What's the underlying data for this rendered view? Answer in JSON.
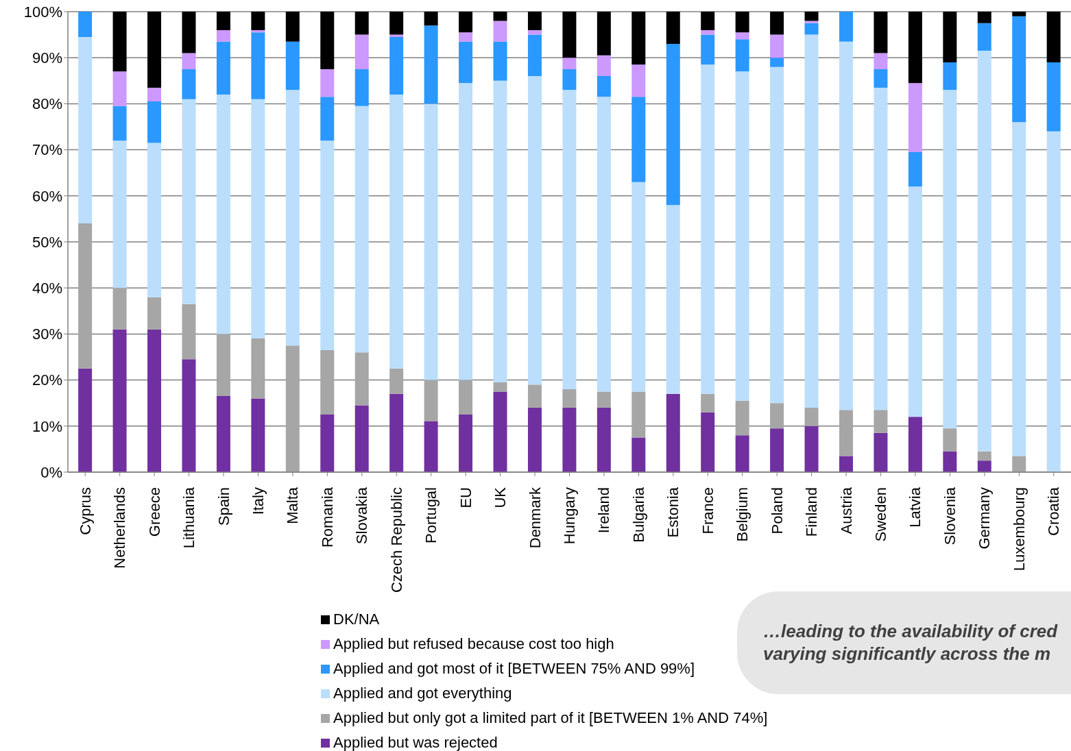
{
  "chart_data": {
    "type": "bar",
    "stacked": true,
    "categories": [
      "Cyprus",
      "Netherlands",
      "Greece",
      "Lithuania",
      "Spain",
      "Italy",
      "Malta",
      "Romania",
      "Slovakia",
      "Czech Republic",
      "Portugal",
      "EU",
      "UK",
      "Denmark",
      "Hungary",
      "Ireland",
      "Bulgaria",
      "Estonia",
      "France",
      "Belgium",
      "Poland",
      "Finland",
      "Austria",
      "Sweden",
      "Latvia",
      "Slovenia",
      "Germany",
      "Luxembourg",
      "Croatia"
    ],
    "series": [
      {
        "name": "Applied but was rejected",
        "color": "#7030a0",
        "values": [
          22.5,
          31,
          31,
          24.5,
          16.5,
          16,
          0,
          12.5,
          14.5,
          17,
          11,
          12.5,
          17.5,
          14,
          14,
          14,
          7.5,
          17,
          13,
          8,
          9.5,
          10,
          3.5,
          8.5,
          12,
          4.5,
          2.5,
          0,
          0
        ]
      },
      {
        "name": "Applied but only got a limited part of it [BETWEEN 1% AND 74%]",
        "color": "#a6a6a6",
        "values": [
          31.5,
          9,
          7,
          12,
          13.5,
          13,
          27.5,
          14,
          11.5,
          5.5,
          9,
          7.5,
          2,
          5,
          4,
          3.5,
          10,
          0,
          4,
          7.5,
          5.5,
          4,
          10,
          5,
          0,
          5,
          2,
          3.5,
          0
        ]
      },
      {
        "name": "Applied and got everything",
        "color": "#bbdefc",
        "values": [
          40.5,
          32,
          33.5,
          44.5,
          52,
          52,
          55.5,
          45.5,
          53.5,
          59.5,
          60,
          64.5,
          65.5,
          67,
          65,
          64,
          45.5,
          41,
          71.5,
          71.5,
          73,
          81,
          80,
          70,
          50,
          73.5,
          87,
          72.5,
          74
        ]
      },
      {
        "name": "Applied and got most of it [BETWEEN 75% AND 99%]",
        "color": "#2a98fe",
        "values": [
          5.5,
          7.5,
          9,
          6.5,
          11.5,
          14.5,
          10.5,
          9.5,
          8,
          12.5,
          17,
          9,
          8.5,
          9,
          4.5,
          4.5,
          18.5,
          35,
          6.5,
          7,
          2,
          2.5,
          6.5,
          4,
          7.5,
          6,
          6,
          23,
          15
        ]
      },
      {
        "name": "Applied but refused because cost too high",
        "color": "#cc99ff",
        "values": [
          0,
          7.5,
          3,
          3.5,
          2.5,
          0.5,
          0,
          6,
          7.5,
          0.5,
          0,
          2,
          4.5,
          1,
          2.5,
          4.5,
          7,
          0,
          1,
          1.5,
          5,
          0.5,
          0,
          3.5,
          15,
          0,
          0,
          0,
          0
        ]
      },
      {
        "name": "DK/NA",
        "color": "#000000",
        "values": [
          0,
          13,
          16.5,
          9,
          4,
          4,
          6.5,
          12.5,
          5,
          5,
          3,
          4.5,
          2,
          4,
          10,
          9.5,
          11.5,
          7,
          4,
          4.5,
          5,
          2,
          0,
          9,
          15.5,
          11,
          2.5,
          1,
          11
        ]
      }
    ],
    "ylim": [
      0,
      100
    ],
    "yticks": [
      {
        "value": 0,
        "label": "0%"
      },
      {
        "value": 10,
        "label": "10%"
      },
      {
        "value": 20,
        "label": "20%"
      },
      {
        "value": 30,
        "label": "30%"
      },
      {
        "value": 40,
        "label": "40%"
      },
      {
        "value": 50,
        "label": "50%"
      },
      {
        "value": 60,
        "label": "60%"
      },
      {
        "value": 70,
        "label": "70%"
      },
      {
        "value": 80,
        "label": "80%"
      },
      {
        "value": 90,
        "label": "90%"
      },
      {
        "value": 100,
        "label": "100%"
      }
    ],
    "grid": "y",
    "legend": "bottom",
    "annotations": [
      "…leading to the availability of cred",
      "varying significantly across the m"
    ]
  }
}
